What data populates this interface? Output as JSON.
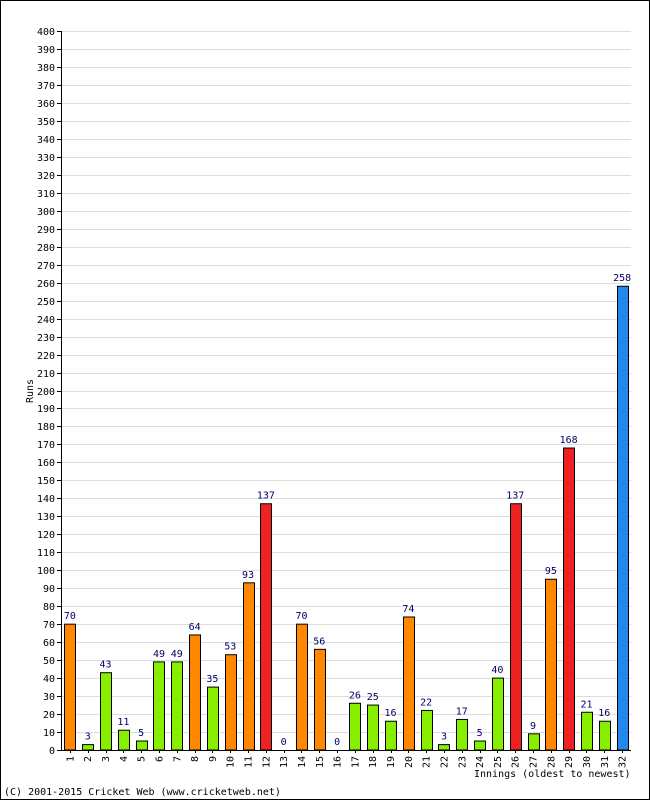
{
  "colors": {
    "background": "#ffffff",
    "grid": "#dddddd",
    "axis": "#000000",
    "data_label": "#000066",
    "bar_outline": "#000000",
    "green": "#88ee00",
    "orange": "#ff8800",
    "red": "#ee2222",
    "blue": "#2288ee"
  },
  "copyright": "(C) 2001-2015 Cricket Web (www.cricketweb.net)",
  "chart_data": {
    "type": "bar",
    "title": "",
    "xlabel": "Innings (oldest to newest)",
    "ylabel": "Runs",
    "ylim": [
      0,
      400
    ],
    "ytick_step": 10,
    "grid": true,
    "legend": "none",
    "categories": [
      "1",
      "2",
      "3",
      "4",
      "5",
      "6",
      "7",
      "8",
      "9",
      "10",
      "11",
      "12",
      "13",
      "14",
      "15",
      "16",
      "17",
      "18",
      "19",
      "20",
      "21",
      "22",
      "23",
      "24",
      "25",
      "26",
      "27",
      "28",
      "29",
      "30",
      "31",
      "32"
    ],
    "values": [
      70,
      3,
      43,
      11,
      5,
      49,
      49,
      64,
      35,
      53,
      93,
      137,
      0,
      70,
      56,
      0,
      26,
      25,
      16,
      74,
      22,
      3,
      17,
      5,
      40,
      137,
      9,
      95,
      168,
      21,
      16,
      258
    ],
    "bar_colors": [
      "orange",
      "green",
      "green",
      "green",
      "green",
      "green",
      "green",
      "orange",
      "green",
      "orange",
      "orange",
      "red",
      "green",
      "orange",
      "orange",
      "green",
      "green",
      "green",
      "green",
      "orange",
      "green",
      "green",
      "green",
      "green",
      "green",
      "red",
      "green",
      "orange",
      "red",
      "green",
      "green",
      "blue"
    ]
  }
}
